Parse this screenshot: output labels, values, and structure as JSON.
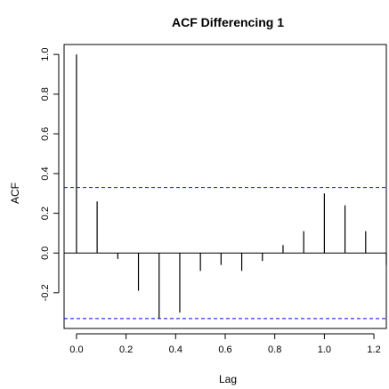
{
  "chart_data": {
    "type": "bar",
    "title": "ACF Differencing 1",
    "xlabel": "Lag",
    "ylabel": "ACF",
    "xlim": [
      -0.05,
      1.25
    ],
    "ylim": [
      -0.38,
      1.05
    ],
    "x_ticks": [
      0.0,
      0.2,
      0.4,
      0.6,
      0.8,
      1.0,
      1.2
    ],
    "x_tick_labels": [
      "0.0",
      "0.2",
      "0.4",
      "0.6",
      "0.8",
      "1.0",
      "1.2"
    ],
    "y_ticks": [
      -0.2,
      0.0,
      0.2,
      0.4,
      0.6,
      0.8,
      1.0
    ],
    "y_tick_labels": [
      "-0.2",
      "0.0",
      "0.2",
      "0.4",
      "0.6",
      "0.8",
      "1.0"
    ],
    "confidence_bound": 0.33,
    "lags": [
      0.0,
      0.0833,
      0.1667,
      0.25,
      0.3333,
      0.4167,
      0.5,
      0.5833,
      0.6667,
      0.75,
      0.8333,
      0.9167,
      1.0,
      1.0833,
      1.1667,
      1.25
    ],
    "values": [
      1.0,
      0.26,
      -0.03,
      -0.19,
      -0.33,
      -0.3,
      -0.09,
      -0.06,
      -0.09,
      -0.04,
      0.04,
      0.11,
      0.3,
      0.24,
      0.11,
      -0.06
    ],
    "colors": {
      "bars": "#000000",
      "confidence": "#0000ff",
      "zero_line": "#000000",
      "axis": "#000000"
    }
  }
}
